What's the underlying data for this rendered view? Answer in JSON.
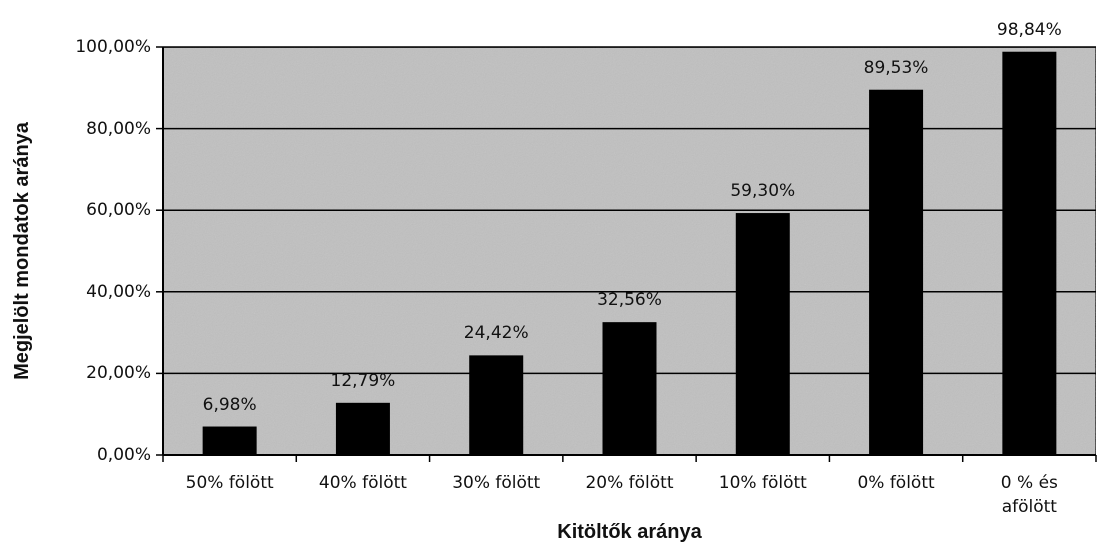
{
  "chart_data": {
    "type": "bar",
    "y_axis_label": "Megjelölt mondatok aránya",
    "x_axis_label": "Kitöltők aránya",
    "categories": [
      "50% fölött",
      "40% fölött",
      "30% fölött",
      "20% fölött",
      "10% fölött",
      "0% fölött",
      "0 % és afölött"
    ],
    "values": [
      6.98,
      12.79,
      24.42,
      32.56,
      59.3,
      89.53,
      98.84
    ],
    "value_labels": [
      "6,98%",
      "12,79%",
      "24,42%",
      "32,56%",
      "59,30%",
      "89,53%",
      "98,84%"
    ],
    "color": "#000000",
    "plot_background": "#c0c0c0",
    "ylim": [
      0,
      100
    ],
    "yticks": [
      {
        "value": 0,
        "label": "0,00%"
      },
      {
        "value": 20,
        "label": "20,00%"
      },
      {
        "value": 40,
        "label": "40,00%"
      },
      {
        "value": 60,
        "label": "60,00%"
      },
      {
        "value": 80,
        "label": "80,00%"
      },
      {
        "value": 100,
        "label": "100,00%"
      }
    ],
    "grid": true
  }
}
